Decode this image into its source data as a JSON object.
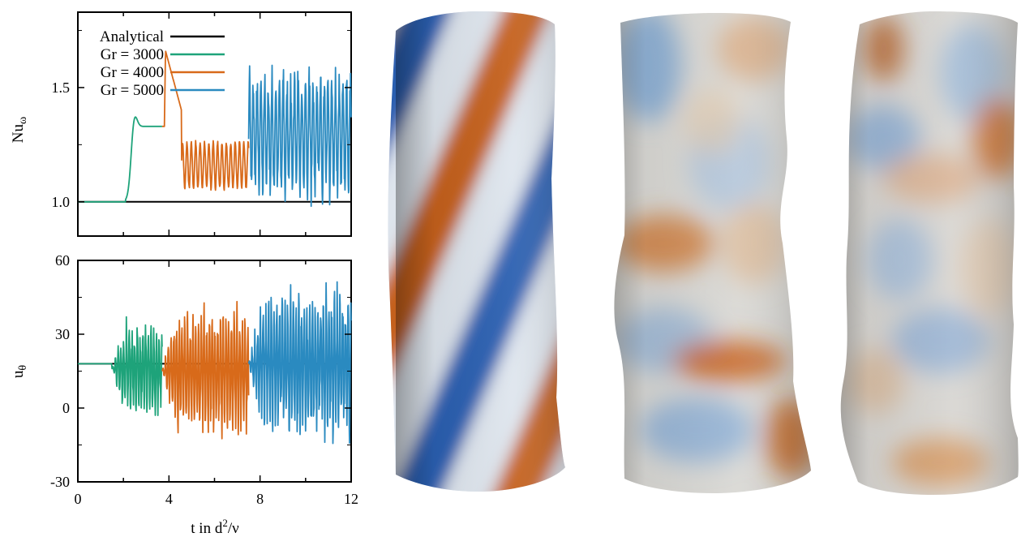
{
  "chart_data": [
    {
      "type": "line",
      "panel": "top",
      "ylabel": "Nu",
      "ylabel_sub": "ω",
      "ylim": [
        0.85,
        1.83
      ],
      "yticks": [
        "1.0",
        "1.5"
      ],
      "xlim": [
        0,
        12
      ],
      "legend_position": "top-left",
      "series": [
        {
          "name": "Analytical",
          "color": "#000000",
          "kind": "constant",
          "t": [
            0,
            12
          ],
          "value": 1.0
        },
        {
          "name": "Gr = 3000",
          "color": "#1ea37a",
          "kind": "signal",
          "t": [
            0,
            3.7
          ],
          "base": 1.0,
          "mean": 1.33,
          "amp": 0.0,
          "onset": 2.1,
          "overshoot": 1.41
        },
        {
          "name": "Gr = 4000",
          "color": "#d86a1a",
          "kind": "signal",
          "t": [
            3.7,
            7.5
          ],
          "base": 1.33,
          "mean": 1.16,
          "amp": 0.1,
          "onset": 3.8,
          "overshoot": 1.68
        },
        {
          "name": "Gr = 5000",
          "color": "#2a8ac0",
          "kind": "signal",
          "t": [
            7.5,
            12
          ],
          "base": 1.2,
          "mean": 1.3,
          "amp": 0.3,
          "onset": 7.5,
          "overshoot": 1.3
        }
      ]
    },
    {
      "type": "line",
      "panel": "bottom",
      "ylabel": "u",
      "ylabel_sub": "θ",
      "ylim": [
        -30,
        60
      ],
      "yticks": [
        "-30",
        "0",
        "30",
        "60"
      ],
      "xlim": [
        0,
        12
      ],
      "xticks": [
        "0",
        "4",
        "8",
        "12"
      ],
      "xlabel_main": "t in d",
      "xlabel_sup": "2",
      "xlabel_tail": "/ν",
      "series": [
        {
          "name": "Analytical",
          "color": "#000000",
          "kind": "constant",
          "t": [
            0,
            12
          ],
          "value": 18
        },
        {
          "name": "Gr = 3000",
          "color": "#1ea37a",
          "kind": "signal",
          "t": [
            0,
            3.7
          ],
          "base": 18,
          "mean": 16,
          "amp": 20,
          "onset": 1.5,
          "overshoot": 36
        },
        {
          "name": "Gr = 4000",
          "color": "#d86a1a",
          "kind": "signal",
          "t": [
            3.7,
            7.5
          ],
          "base": 18,
          "mean": 15,
          "amp": 27,
          "onset": 3.7,
          "overshoot": 51
        },
        {
          "name": "Gr = 5000",
          "color": "#2a8ac0",
          "kind": "signal",
          "t": [
            7.5,
            12
          ],
          "base": 18,
          "mean": 18,
          "amp": 30,
          "onset": 7.5,
          "overshoot": 58
        }
      ]
    }
  ],
  "renderings": {
    "colormap": [
      "#2a5fb0",
      "#dfe6ee",
      "#c4611a"
    ]
  }
}
